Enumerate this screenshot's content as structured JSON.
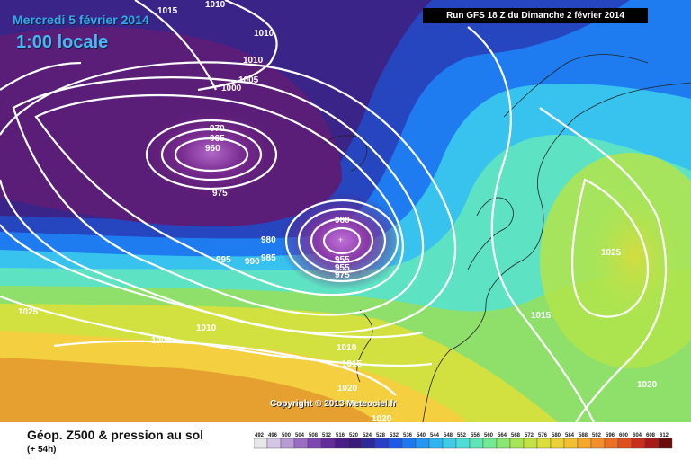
{
  "header": {
    "date": "Mercredi 5 février 2014",
    "time": "1:00 locale",
    "run": "Run GFS 18 Z du Dimanche 2 février 2014"
  },
  "copyright": "Copyright © 2013 Meteociel.fr",
  "footer": {
    "title": "Géop. Z500 & pression au sol",
    "subtitle": "(+ 54h)"
  },
  "legend": {
    "values": [
      "492",
      "496",
      "500",
      "504",
      "508",
      "512",
      "516",
      "520",
      "524",
      "528",
      "532",
      "536",
      "540",
      "544",
      "548",
      "552",
      "556",
      "560",
      "564",
      "568",
      "572",
      "576",
      "580",
      "584",
      "588",
      "592",
      "596",
      "600",
      "604",
      "608",
      "612"
    ],
    "colors": [
      "#e8e8e8",
      "#d6c6e6",
      "#b89ad4",
      "#9a6cc4",
      "#7e46b0",
      "#642c9a",
      "#4a1c88",
      "#3a1a7a",
      "#2c2a9a",
      "#2840c8",
      "#1e5ae6",
      "#1e78f0",
      "#2596f4",
      "#30b4f0",
      "#40cce8",
      "#50dcd8",
      "#5fe6b8",
      "#72ea92",
      "#8ae872",
      "#a6e654",
      "#c4e246",
      "#dcde3e",
      "#ecd038",
      "#f4be32",
      "#f6a82c",
      "#f48e28",
      "#ec7024",
      "#de5020",
      "#c8301c",
      "#a81a18",
      "#6a0c0c"
    ]
  },
  "isobars": [
    {
      "label": "1015"
    },
    {
      "label": "1010"
    },
    {
      "label": "1010"
    },
    {
      "label": "1010"
    },
    {
      "label": "1005"
    },
    {
      "label": "1000"
    },
    {
      "label": "970"
    },
    {
      "label": "965"
    },
    {
      "label": "960"
    },
    {
      "label": "975"
    },
    {
      "label": "960"
    },
    {
      "label": "980"
    },
    {
      "label": "995"
    },
    {
      "label": "990"
    },
    {
      "label": "985"
    },
    {
      "label": "955"
    },
    {
      "label": "955"
    },
    {
      "label": "975"
    },
    {
      "label": "1025"
    },
    {
      "label": "1010"
    },
    {
      "label": "1005"
    },
    {
      "label": "1010"
    },
    {
      "label": "1015"
    },
    {
      "label": "1020"
    },
    {
      "label": "1020"
    },
    {
      "label": "1015"
    },
    {
      "label": "1025"
    },
    {
      "label": "1020"
    }
  ]
}
